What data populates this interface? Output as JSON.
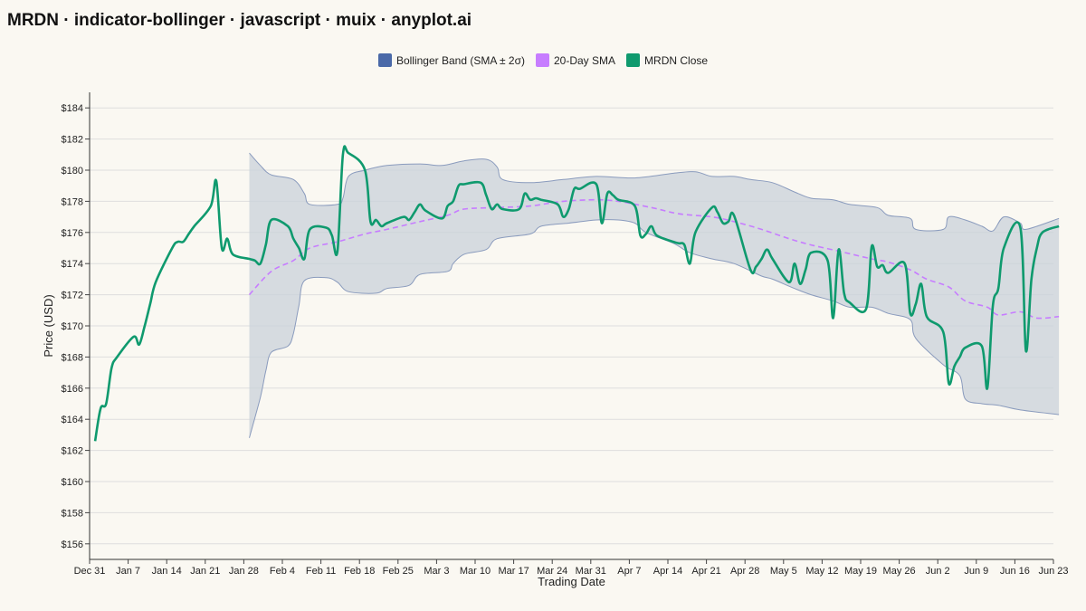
{
  "title": "MRDN · indicator-bollinger · javascript · muix · anyplot.ai",
  "colors": {
    "band_legend": "#4a69a8",
    "band_fill": "#c9d2d9",
    "band_line": "#8a9bbd",
    "sma": "#c77dff",
    "close": "#0f9a6e",
    "grid": "#dedede",
    "background": "#faf8f2"
  },
  "chart_data": {
    "type": "line",
    "xlabel": "Trading Date",
    "ylabel": "Price (USD)",
    "legend_position": "top-center",
    "grid": true,
    "x_range": [
      "2023-12-31",
      "2024-06-23"
    ],
    "ylim": [
      155,
      185
    ],
    "y_ticks": [
      156,
      158,
      160,
      162,
      164,
      166,
      168,
      170,
      172,
      174,
      176,
      178,
      180,
      182,
      184
    ],
    "y_tick_labels": [
      "$156",
      "$158",
      "$160",
      "$162",
      "$164",
      "$166",
      "$168",
      "$170",
      "$172",
      "$174",
      "$176",
      "$178",
      "$180",
      "$182",
      "$184"
    ],
    "x_ticks": [
      "2023-12-31",
      "2024-01-07",
      "2024-01-14",
      "2024-01-21",
      "2024-01-28",
      "2024-02-04",
      "2024-02-11",
      "2024-02-18",
      "2024-02-25",
      "2024-03-03",
      "2024-03-10",
      "2024-03-17",
      "2024-03-24",
      "2024-03-31",
      "2024-04-07",
      "2024-04-14",
      "2024-04-21",
      "2024-04-28",
      "2024-05-05",
      "2024-05-12",
      "2024-05-19",
      "2024-05-26",
      "2024-06-02",
      "2024-06-09",
      "2024-06-16",
      "2024-06-23"
    ],
    "x_tick_labels": [
      "Dec 31",
      "Jan 7",
      "Jan 14",
      "Jan 21",
      "Jan 28",
      "Feb 4",
      "Feb 11",
      "Feb 18",
      "Feb 25",
      "Mar 3",
      "Mar 10",
      "Mar 17",
      "Mar 24",
      "Mar 31",
      "Apr 7",
      "Apr 14",
      "Apr 21",
      "Apr 28",
      "May 5",
      "May 12",
      "May 19",
      "May 26",
      "Jun 2",
      "Jun 9",
      "Jun 16",
      "Jun 23"
    ],
    "series": [
      {
        "name": "MRDN Close",
        "key": "close",
        "points": [
          [
            "2024-01-01",
            162.6
          ],
          [
            "2024-01-02",
            164.7
          ],
          [
            "2024-01-03",
            165.0
          ],
          [
            "2024-01-04",
            167.3
          ],
          [
            "2024-01-05",
            168.0
          ],
          [
            "2024-01-08",
            169.3
          ],
          [
            "2024-01-09",
            168.8
          ],
          [
            "2024-01-10",
            170.0
          ],
          [
            "2024-01-11",
            171.4
          ],
          [
            "2024-01-12",
            172.8
          ],
          [
            "2024-01-15",
            175.0
          ],
          [
            "2024-01-16",
            175.4
          ],
          [
            "2024-01-17",
            175.4
          ],
          [
            "2024-01-18",
            175.9
          ],
          [
            "2024-01-19",
            176.4
          ],
          [
            "2024-01-22",
            177.7
          ],
          [
            "2024-01-23",
            179.3
          ],
          [
            "2024-01-24",
            175.0
          ],
          [
            "2024-01-25",
            175.6
          ],
          [
            "2024-01-26",
            174.6
          ],
          [
            "2024-01-29",
            174.3
          ],
          [
            "2024-01-30",
            174.2
          ],
          [
            "2024-01-31",
            174.0
          ],
          [
            "2024-02-01",
            175.2
          ],
          [
            "2024-02-02",
            176.8
          ],
          [
            "2024-02-05",
            176.4
          ],
          [
            "2024-02-06",
            175.6
          ],
          [
            "2024-02-07",
            175.0
          ],
          [
            "2024-02-08",
            174.3
          ],
          [
            "2024-02-09",
            176.2
          ],
          [
            "2024-02-12",
            176.3
          ],
          [
            "2024-02-13",
            175.8
          ],
          [
            "2024-02-14",
            174.8
          ],
          [
            "2024-02-15",
            181.0
          ],
          [
            "2024-02-16",
            181.1
          ],
          [
            "2024-02-19",
            180.0
          ],
          [
            "2024-02-20",
            176.7
          ],
          [
            "2024-02-21",
            176.8
          ],
          [
            "2024-02-22",
            176.4
          ],
          [
            "2024-02-23",
            176.6
          ],
          [
            "2024-02-26",
            177.0
          ],
          [
            "2024-02-27",
            176.8
          ],
          [
            "2024-02-28",
            177.3
          ],
          [
            "2024-02-29",
            177.8
          ],
          [
            "2024-03-01",
            177.4
          ],
          [
            "2024-03-04",
            176.9
          ],
          [
            "2024-03-05",
            177.7
          ],
          [
            "2024-03-06",
            178.0
          ],
          [
            "2024-03-07",
            179.0
          ],
          [
            "2024-03-08",
            179.1
          ],
          [
            "2024-03-11",
            179.2
          ],
          [
            "2024-03-12",
            178.4
          ],
          [
            "2024-03-13",
            177.5
          ],
          [
            "2024-03-14",
            177.8
          ],
          [
            "2024-03-15",
            177.5
          ],
          [
            "2024-03-18",
            177.5
          ],
          [
            "2024-03-19",
            178.5
          ],
          [
            "2024-03-20",
            178.1
          ],
          [
            "2024-03-21",
            178.2
          ],
          [
            "2024-03-22",
            178.1
          ],
          [
            "2024-03-25",
            177.8
          ],
          [
            "2024-03-26",
            177.0
          ],
          [
            "2024-03-27",
            177.5
          ],
          [
            "2024-03-28",
            178.8
          ],
          [
            "2024-03-29",
            178.8
          ],
          [
            "2024-04-01",
            179.1
          ],
          [
            "2024-04-02",
            176.6
          ],
          [
            "2024-04-03",
            178.5
          ],
          [
            "2024-04-04",
            178.4
          ],
          [
            "2024-04-05",
            178.1
          ],
          [
            "2024-04-08",
            177.7
          ],
          [
            "2024-04-09",
            175.8
          ],
          [
            "2024-04-10",
            175.9
          ],
          [
            "2024-04-11",
            176.4
          ],
          [
            "2024-04-12",
            175.8
          ],
          [
            "2024-04-15",
            175.4
          ],
          [
            "2024-04-16",
            175.3
          ],
          [
            "2024-04-17",
            175.2
          ],
          [
            "2024-04-18",
            174.0
          ],
          [
            "2024-04-19",
            176.0
          ],
          [
            "2024-04-22",
            177.6
          ],
          [
            "2024-04-23",
            177.3
          ],
          [
            "2024-04-24",
            176.6
          ],
          [
            "2024-04-25",
            176.7
          ],
          [
            "2024-04-26",
            177.1
          ],
          [
            "2024-04-29",
            173.6
          ],
          [
            "2024-04-30",
            173.8
          ],
          [
            "2024-05-01",
            174.3
          ],
          [
            "2024-05-02",
            174.9
          ],
          [
            "2024-05-03",
            174.3
          ],
          [
            "2024-05-06",
            172.8
          ],
          [
            "2024-05-07",
            174.0
          ],
          [
            "2024-05-08",
            172.7
          ],
          [
            "2024-05-09",
            173.6
          ],
          [
            "2024-05-10",
            174.7
          ],
          [
            "2024-05-13",
            174.2
          ],
          [
            "2024-05-14",
            170.5
          ],
          [
            "2024-05-15",
            174.9
          ],
          [
            "2024-05-16",
            172.1
          ],
          [
            "2024-05-17",
            171.5
          ],
          [
            "2024-05-20",
            171.1
          ],
          [
            "2024-05-21",
            175.1
          ],
          [
            "2024-05-22",
            173.8
          ],
          [
            "2024-05-23",
            173.9
          ],
          [
            "2024-05-24",
            173.4
          ],
          [
            "2024-05-27",
            174.0
          ],
          [
            "2024-05-28",
            170.8
          ],
          [
            "2024-05-29",
            171.4
          ],
          [
            "2024-05-30",
            172.7
          ],
          [
            "2024-05-31",
            170.6
          ],
          [
            "2024-06-03",
            169.6
          ],
          [
            "2024-06-04",
            166.3
          ],
          [
            "2024-06-05",
            167.4
          ],
          [
            "2024-06-06",
            168.0
          ],
          [
            "2024-06-07",
            168.6
          ],
          [
            "2024-06-10",
            168.7
          ],
          [
            "2024-06-11",
            166.0
          ],
          [
            "2024-06-12",
            171.3
          ],
          [
            "2024-06-13",
            172.4
          ],
          [
            "2024-06-14",
            175.0
          ],
          [
            "2024-06-17",
            176.3
          ],
          [
            "2024-06-18",
            168.4
          ],
          [
            "2024-06-19",
            173.0
          ],
          [
            "2024-06-20",
            175.0
          ],
          [
            "2024-06-21",
            176.0
          ],
          [
            "2024-06-24",
            176.4
          ]
        ]
      },
      {
        "name": "20-Day SMA",
        "key": "sma",
        "points": [
          [
            "2024-01-29",
            172.0
          ],
          [
            "2024-02-02",
            173.5
          ],
          [
            "2024-02-06",
            174.2
          ],
          [
            "2024-02-09",
            175.0
          ],
          [
            "2024-02-14",
            175.4
          ],
          [
            "2024-02-19",
            175.9
          ],
          [
            "2024-02-23",
            176.2
          ],
          [
            "2024-02-29",
            176.7
          ],
          [
            "2024-03-05",
            177.1
          ],
          [
            "2024-03-08",
            177.5
          ],
          [
            "2024-03-14",
            177.6
          ],
          [
            "2024-03-20",
            177.7
          ],
          [
            "2024-03-26",
            178.0
          ],
          [
            "2024-04-01",
            178.1
          ],
          [
            "2024-04-05",
            178.0
          ],
          [
            "2024-04-11",
            177.6
          ],
          [
            "2024-04-16",
            177.2
          ],
          [
            "2024-04-22",
            177.0
          ],
          [
            "2024-04-26",
            176.7
          ],
          [
            "2024-05-01",
            176.2
          ],
          [
            "2024-05-06",
            175.6
          ],
          [
            "2024-05-10",
            175.2
          ],
          [
            "2024-05-15",
            174.8
          ],
          [
            "2024-05-21",
            174.3
          ],
          [
            "2024-05-24",
            174.1
          ],
          [
            "2024-05-28",
            173.6
          ],
          [
            "2024-05-31",
            173.0
          ],
          [
            "2024-06-04",
            172.5
          ],
          [
            "2024-06-07",
            171.6
          ],
          [
            "2024-06-11",
            171.2
          ],
          [
            "2024-06-13",
            170.7
          ],
          [
            "2024-06-17",
            170.9
          ],
          [
            "2024-06-20",
            170.5
          ],
          [
            "2024-06-24",
            170.6
          ]
        ]
      },
      {
        "name": "Bollinger Band (SMA ± 2σ)",
        "key": "band",
        "upper": [
          [
            "2024-01-29",
            181.1
          ],
          [
            "2024-01-31",
            180.3
          ],
          [
            "2024-02-02",
            179.7
          ],
          [
            "2024-02-06",
            179.4
          ],
          [
            "2024-02-08",
            178.5
          ],
          [
            "2024-02-09",
            177.8
          ],
          [
            "2024-02-14",
            177.8
          ],
          [
            "2024-02-15",
            178.2
          ],
          [
            "2024-02-16",
            179.6
          ],
          [
            "2024-02-19",
            180.0
          ],
          [
            "2024-02-23",
            180.3
          ],
          [
            "2024-02-29",
            180.4
          ],
          [
            "2024-03-04",
            180.3
          ],
          [
            "2024-03-08",
            180.6
          ],
          [
            "2024-03-12",
            180.7
          ],
          [
            "2024-03-14",
            180.2
          ],
          [
            "2024-03-15",
            179.4
          ],
          [
            "2024-03-20",
            179.2
          ],
          [
            "2024-03-26",
            179.4
          ],
          [
            "2024-04-01",
            179.6
          ],
          [
            "2024-04-08",
            179.5
          ],
          [
            "2024-04-15",
            179.8
          ],
          [
            "2024-04-19",
            179.9
          ],
          [
            "2024-04-22",
            179.6
          ],
          [
            "2024-04-26",
            179.6
          ],
          [
            "2024-04-29",
            179.4
          ],
          [
            "2024-05-03",
            179.2
          ],
          [
            "2024-05-07",
            178.6
          ],
          [
            "2024-05-10",
            178.2
          ],
          [
            "2024-05-14",
            178.1
          ],
          [
            "2024-05-17",
            177.8
          ],
          [
            "2024-05-22",
            177.6
          ],
          [
            "2024-05-24",
            177.1
          ],
          [
            "2024-05-28",
            176.9
          ],
          [
            "2024-05-29",
            176.2
          ],
          [
            "2024-06-03",
            176.2
          ],
          [
            "2024-06-04",
            177.0
          ],
          [
            "2024-06-07",
            176.8
          ],
          [
            "2024-06-10",
            176.4
          ],
          [
            "2024-06-12",
            176.1
          ],
          [
            "2024-06-14",
            177.0
          ],
          [
            "2024-06-17",
            176.6
          ],
          [
            "2024-06-18",
            176.2
          ],
          [
            "2024-06-24",
            176.9
          ]
        ],
        "lower": [
          [
            "2024-01-29",
            162.8
          ],
          [
            "2024-01-31",
            165.4
          ],
          [
            "2024-02-01",
            167.1
          ],
          [
            "2024-02-02",
            168.3
          ],
          [
            "2024-02-05",
            168.7
          ],
          [
            "2024-02-06",
            169.5
          ],
          [
            "2024-02-07",
            171.3
          ],
          [
            "2024-02-08",
            172.9
          ],
          [
            "2024-02-12",
            173.1
          ],
          [
            "2024-02-14",
            172.8
          ],
          [
            "2024-02-16",
            172.2
          ],
          [
            "2024-02-21",
            172.1
          ],
          [
            "2024-02-23",
            172.4
          ],
          [
            "2024-02-27",
            172.6
          ],
          [
            "2024-02-29",
            173.3
          ],
          [
            "2024-03-05",
            173.5
          ],
          [
            "2024-03-06",
            174.0
          ],
          [
            "2024-03-08",
            174.6
          ],
          [
            "2024-03-12",
            174.9
          ],
          [
            "2024-03-14",
            175.6
          ],
          [
            "2024-03-20",
            175.9
          ],
          [
            "2024-03-22",
            176.4
          ],
          [
            "2024-03-27",
            176.6
          ],
          [
            "2024-04-01",
            176.8
          ],
          [
            "2024-04-05",
            176.8
          ],
          [
            "2024-04-08",
            176.6
          ],
          [
            "2024-04-10",
            176.0
          ],
          [
            "2024-04-15",
            175.3
          ],
          [
            "2024-04-18",
            174.7
          ],
          [
            "2024-04-22",
            174.3
          ],
          [
            "2024-04-26",
            174.0
          ],
          [
            "2024-05-01",
            173.2
          ],
          [
            "2024-05-03",
            173.0
          ],
          [
            "2024-05-07",
            172.4
          ],
          [
            "2024-05-10",
            172.0
          ],
          [
            "2024-05-14",
            171.6
          ],
          [
            "2024-05-17",
            171.2
          ],
          [
            "2024-05-21",
            171.2
          ],
          [
            "2024-05-24",
            170.8
          ],
          [
            "2024-05-28",
            170.4
          ],
          [
            "2024-05-29",
            169.2
          ],
          [
            "2024-06-03",
            167.5
          ],
          [
            "2024-06-06",
            166.8
          ],
          [
            "2024-06-07",
            165.3
          ],
          [
            "2024-06-10",
            165.0
          ],
          [
            "2024-06-13",
            164.9
          ],
          [
            "2024-06-17",
            164.6
          ],
          [
            "2024-06-24",
            164.3
          ]
        ]
      }
    ]
  }
}
